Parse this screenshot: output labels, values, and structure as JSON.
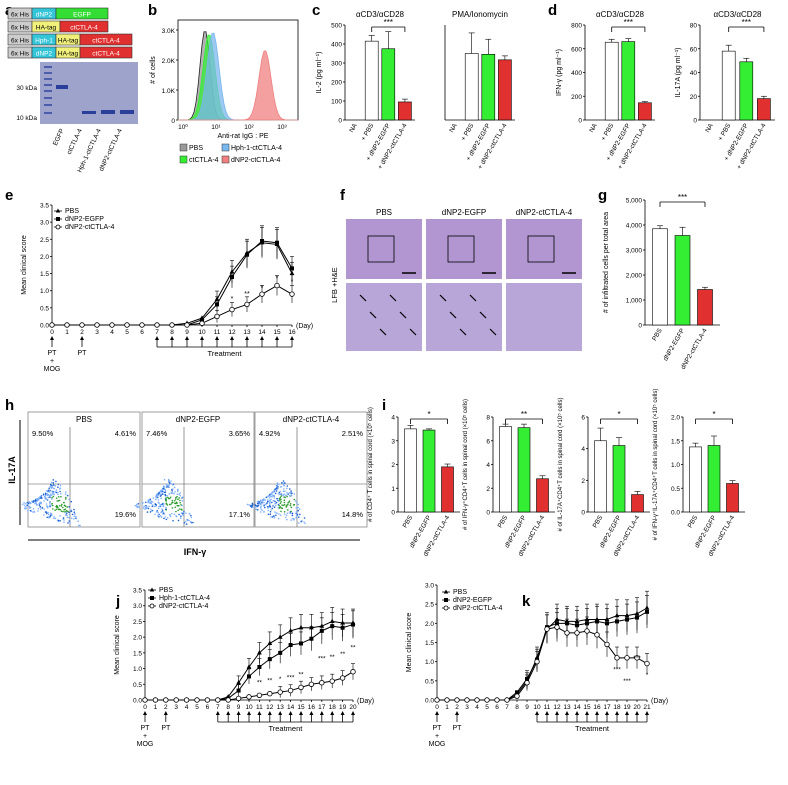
{
  "colors": {
    "pbs": "#ffffff",
    "egfp": "#33ee33",
    "ctla": "#e03030",
    "hph": "#79b7ee",
    "his": "#cccccc",
    "np2": "#35c5d8",
    "ha": "#f0f07a",
    "gel": "#9ea3cc",
    "band": "#2a3f9a",
    "flowBg": "#dddddd"
  },
  "panel_letters": [
    "a",
    "b",
    "c",
    "d",
    "e",
    "f",
    "g",
    "h",
    "i",
    "j",
    "k"
  ],
  "panel_a": {
    "rows": [
      {
        "his": "6x His",
        "tag1": "dNP2",
        "tag2": "EGFP"
      },
      {
        "his": "6x His",
        "tag1": "HA-tag",
        "tag2": "ctCTLA-4"
      },
      {
        "his": "6x His",
        "tag1": "Hph-1",
        "tag2": "HA-tag",
        "tag3": "ctCTLA-4"
      },
      {
        "his": "6x His",
        "tag1": "dNP2",
        "tag2": "HA-tag",
        "tag3": "ctCTLA-4"
      }
    ],
    "markers": [
      "30 kDa",
      "10 kDa"
    ],
    "lanes": [
      "EGFP",
      "ctCTLA-4",
      "Hph-1-ctCTLA-4",
      "dNP2-ctCTLA-4"
    ]
  },
  "panel_b": {
    "ylabel": "# of cells",
    "xlabel": "Anti-rat IgG : PE",
    "yticks": [
      "3.0K",
      "2.0K",
      "1.0K",
      "0"
    ],
    "legend": [
      "PBS",
      "Hph-1-ctCTLA-4",
      "ctCTLA-4",
      "dNP2-ctCTLA-4"
    ]
  },
  "panel_c": {
    "left": {
      "title": "αCD3/αCD28",
      "ylabel": "IL-2 (pg ml⁻¹)",
      "yticks": [
        "0",
        "100",
        "200",
        "300",
        "400",
        "500"
      ],
      "ymax": 500,
      "categories": [
        "NA",
        "+ PBS",
        "+ dNP2-EGFP",
        "+ dNP2-ctCTLA-4"
      ],
      "values": [
        0,
        415,
        375,
        95
      ],
      "errors": [
        0,
        30,
        90,
        15
      ],
      "sig": "***"
    },
    "right": {
      "title": "PMA/Ionomycin",
      "ymax": 1200,
      "categories": [
        "NA",
        "+ PBS",
        "+ dNP2-EGFP",
        "+ dNP2-ctCTLA-4"
      ],
      "values": [
        0,
        840,
        830,
        760
      ],
      "errors": [
        0,
        260,
        190,
        50
      ]
    }
  },
  "panel_d": {
    "left": {
      "title": "αCD3/αCD28",
      "ylabel": "IFN-γ (pg ml⁻¹)",
      "yticks": [
        "0",
        "200",
        "400",
        "600",
        "800"
      ],
      "ymax": 800,
      "categories": [
        "NA",
        "+ PBS",
        "+ dNP2-EGFP",
        "+ dNP2-ctCTLA-4"
      ],
      "values": [
        0,
        655,
        660,
        145
      ],
      "errors": [
        0,
        25,
        25,
        10
      ],
      "sig": "***"
    },
    "right": {
      "title": "αCD3/αCD28",
      "ylabel": "IL-17A (pg ml⁻¹)",
      "yticks": [
        "0",
        "20",
        "40",
        "60",
        "80"
      ],
      "ymax": 80,
      "categories": [
        "NA",
        "+ PBS",
        "+ dNP2-EGFP",
        "+ dNP2-ctCTLA-4"
      ],
      "values": [
        0,
        58,
        49,
        18
      ],
      "errors": [
        0,
        5,
        3,
        2
      ],
      "sig": "***"
    }
  },
  "panel_e": {
    "ylabel": "Mean clinical score",
    "yticks": [
      "0.0",
      "0.5",
      "1.0",
      "1.5",
      "2.0",
      "2.5",
      "3.0",
      "3.5"
    ],
    "ymax": 3.5,
    "xticks": [
      "0",
      "1",
      "2",
      "3",
      "4",
      "5",
      "6",
      "7",
      "8",
      "9",
      "10",
      "11",
      "12",
      "13",
      "14",
      "15",
      "16"
    ],
    "xunit": "(Day)",
    "legend": [
      "PBS",
      "dNP2-EGFP",
      "dNP2-ctCTLA-4"
    ],
    "pbs": [
      0,
      0,
      0,
      0,
      0,
      0,
      0,
      0,
      0,
      0.05,
      0.2,
      0.75,
      1.55,
      2.1,
      2.4,
      2.35,
      1.5
    ],
    "egfp": [
      0,
      0,
      0,
      0,
      0,
      0,
      0,
      0,
      0,
      0,
      0.15,
      0.6,
      1.4,
      2.05,
      2.45,
      2.4,
      1.65
    ],
    "ctla": [
      0,
      0,
      0,
      0,
      0,
      0,
      0,
      0,
      0,
      0,
      0.05,
      0.25,
      0.45,
      0.6,
      0.9,
      1.15,
      0.9
    ],
    "stars": [
      "*",
      "**",
      "*",
      "*",
      "*"
    ],
    "pt_labels": [
      "PT",
      "PT"
    ],
    "mog": "+\nMOG",
    "treatment": "Treatment"
  },
  "panel_f": {
    "columns": [
      "PBS",
      "dNP2-EGFP",
      "dNP2-ctCTLA-4"
    ],
    "side": "LFB +H&E"
  },
  "panel_g": {
    "ylabel": "# of infiltrated cells per total area",
    "yticks": [
      "0",
      "1,000",
      "2,000",
      "3,000",
      "4,000",
      "5,000"
    ],
    "ymax": 5000,
    "categories": [
      "PBS",
      "dNP2-EGFP",
      "dNP2-ctCTLA-4"
    ],
    "values": [
      3850,
      3580,
      1420
    ],
    "errors": [
      120,
      330,
      90
    ],
    "sig": "***"
  },
  "panel_h": {
    "ylabel": "IL-17A",
    "xlabel": "IFN-γ",
    "plots": [
      {
        "title": "PBS",
        "ul": "9.50%",
        "ur": "4.61%",
        "lr": "19.6%"
      },
      {
        "title": "dNP2-EGFP",
        "ul": "7.46%",
        "ur": "3.65%",
        "lr": "17.1%"
      },
      {
        "title": "dNP2-ctCTLA-4",
        "ul": "4.92%",
        "ur": "2.51%",
        "lr": "14.8%"
      }
    ],
    "ticks": [
      "10⁰",
      "10¹",
      "10²",
      "10³",
      "10⁴"
    ]
  },
  "panel_i": [
    {
      "ylabel": "# of CD4⁺ T cells in spinal cord (×10⁵ cells)",
      "yticks": [
        "0",
        "1",
        "2",
        "3",
        "4"
      ],
      "ymax": 4,
      "values": [
        3.5,
        3.45,
        1.9
      ],
      "errors": [
        0.15,
        0.05,
        0.12
      ],
      "sig": "*"
    },
    {
      "ylabel": "# of IFN-γ⁺CD4⁺T cells in spinal cord (×10⁵ cells)",
      "yticks": [
        "0",
        "2",
        "4",
        "6",
        "8"
      ],
      "ymax": 8,
      "values": [
        7.2,
        7.1,
        2.8
      ],
      "errors": [
        0.2,
        0.3,
        0.25
      ],
      "sig": "**"
    },
    {
      "ylabel": "# of IL-17A⁺CD4⁺T cells in spinal cord (×10⁵ cells)",
      "yticks": [
        "0",
        "2",
        "4",
        "6"
      ],
      "ymax": 6,
      "values": [
        4.5,
        4.2,
        1.1
      ],
      "errors": [
        0.8,
        0.5,
        0.2
      ],
      "sig": "*"
    },
    {
      "ylabel": "# of IFN-γ⁺IL-17A⁺CD4⁺T cells in spinal cord (×10⁵ cells)",
      "yticks": [
        "0.0",
        "0.5",
        "1.0",
        "1.5",
        "2.0"
      ],
      "ymax": 2,
      "values": [
        1.37,
        1.4,
        0.6
      ],
      "errors": [
        0.08,
        0.2,
        0.06
      ],
      "sig": "*"
    }
  ],
  "panel_i_categories": [
    "PBS",
    "dNP2-EGFP",
    "dNP2-ctCTLA-4"
  ],
  "panel_j": {
    "ylabel": "Mean clinical score",
    "yticks": [
      "0.0",
      "0.5",
      "1.0",
      "1.5",
      "2.0",
      "2.5",
      "3.0",
      "3.5"
    ],
    "ymax": 3.5,
    "xticks": [
      "0",
      "1",
      "2",
      "3",
      "4",
      "5",
      "6",
      "7",
      "8",
      "9",
      "10",
      "11",
      "12",
      "13",
      "14",
      "15",
      "16",
      "17",
      "18",
      "19",
      "20"
    ],
    "xunit": "(Day)",
    "legend": [
      "PBS",
      "Hph-1-ctCTLA-4",
      "dNP2-ctCTLA-4"
    ],
    "pbs": [
      0,
      0,
      0,
      0,
      0,
      0,
      0,
      0,
      0.1,
      0.55,
      1.05,
      1.5,
      1.8,
      2.0,
      2.2,
      2.3,
      2.3,
      2.35,
      2.5,
      2.45,
      2.45
    ],
    "hph": [
      0,
      0,
      0,
      0,
      0,
      0,
      0,
      0,
      0.05,
      0.3,
      0.75,
      1.05,
      1.3,
      1.5,
      1.75,
      1.8,
      1.95,
      2.2,
      2.35,
      2.3,
      2.4
    ],
    "ctla": [
      0,
      0,
      0,
      0,
      0,
      0,
      0,
      0,
      0,
      0.05,
      0.1,
      0.15,
      0.2,
      0.25,
      0.3,
      0.4,
      0.5,
      0.55,
      0.6,
      0.7,
      0.9
    ],
    "treatment": "Treatment",
    "pt_labels": [
      "PT",
      "PT"
    ],
    "mog": "+\nMOG"
  },
  "panel_k": {
    "ylabel": "Mean clinical score",
    "yticks": [
      "0.0",
      "0.5",
      "1.0",
      "1.5",
      "2.0",
      "2.5",
      "3.0"
    ],
    "ymax": 3,
    "xticks": [
      "0",
      "1",
      "2",
      "3",
      "4",
      "5",
      "6",
      "7",
      "8",
      "9",
      "10",
      "11",
      "12",
      "13",
      "14",
      "15",
      "16",
      "17",
      "18",
      "19",
      "20",
      "21"
    ],
    "xunit": "(Day)",
    "legend": [
      "PBS",
      "dNP2-EGFP",
      "dNP2-ctCTLA-4"
    ],
    "pbs": [
      0,
      0,
      0,
      0,
      0,
      0,
      0,
      0,
      0.15,
      0.5,
      1.1,
      1.85,
      2.1,
      2.05,
      2.05,
      2.1,
      2.1,
      2.1,
      2.2,
      2.2,
      2.25,
      2.4
    ],
    "egfp": [
      0,
      0,
      0,
      0,
      0,
      0,
      0,
      0,
      0.2,
      0.55,
      1.05,
      1.9,
      2.0,
      2.0,
      1.95,
      2.0,
      2.05,
      2.0,
      2.05,
      2.1,
      2.15,
      2.3
    ],
    "ctla": [
      0,
      0,
      0,
      0,
      0,
      0,
      0,
      0,
      0.1,
      0.45,
      1.0,
      1.85,
      1.9,
      1.75,
      1.75,
      1.8,
      1.7,
      1.45,
      1.1,
      1.1,
      1.1,
      0.95
    ],
    "treatment": "Treatment",
    "pt_labels": [
      "PT",
      "PT"
    ],
    "mog": "+\nMOG"
  }
}
